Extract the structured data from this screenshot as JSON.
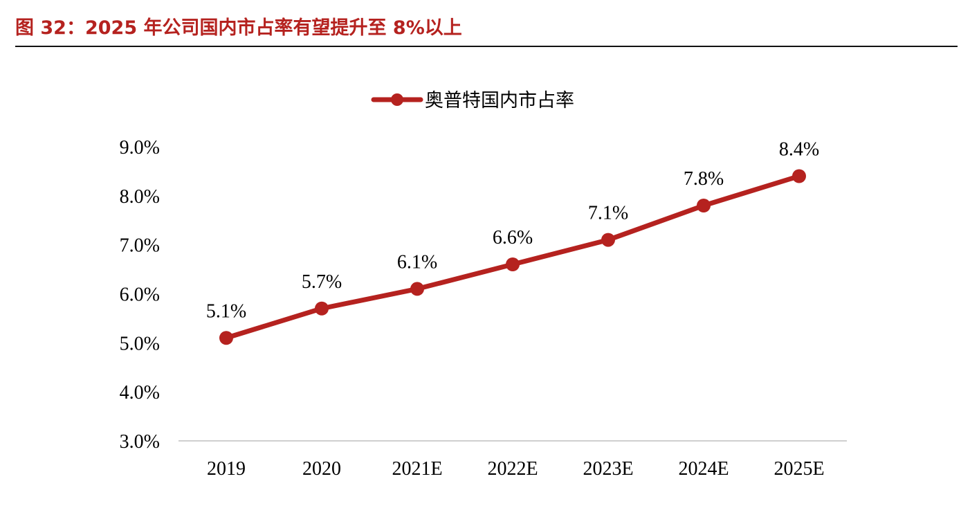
{
  "figure": {
    "title": "图 32：2025 年公司国内市占率有望提升至 8%以上"
  },
  "chart_data": {
    "type": "line",
    "x": [
      "2019",
      "2020",
      "2021E",
      "2022E",
      "2023E",
      "2024E",
      "2025E"
    ],
    "series": [
      {
        "name": "奥普特国内市占率",
        "values": [
          5.1,
          5.7,
          6.1,
          6.6,
          7.1,
          7.8,
          8.4
        ],
        "labels": [
          "5.1%",
          "5.7%",
          "6.1%",
          "6.6%",
          "7.1%",
          "7.8%",
          "8.4%"
        ],
        "color": "#b5221f"
      }
    ],
    "ylim": [
      3.0,
      9.0
    ],
    "yticks": [
      "3.0%",
      "4.0%",
      "5.0%",
      "6.0%",
      "7.0%",
      "8.0%",
      "9.0%"
    ],
    "legend_position": "top-center",
    "grid": false,
    "xlabel": "",
    "ylabel": ""
  }
}
